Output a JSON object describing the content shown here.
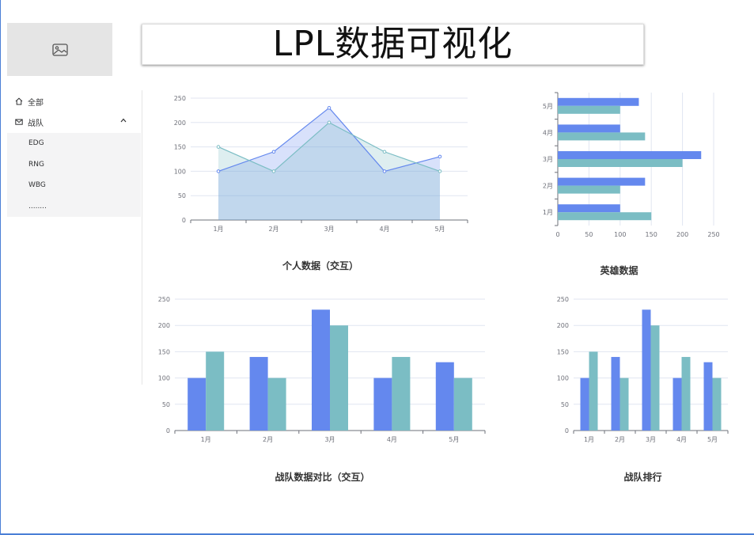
{
  "header": {
    "title": "LPL数据可视化",
    "logo_icon": "image-placeholder-icon"
  },
  "sidebar": {
    "items": [
      {
        "label": "全部",
        "icon": "home-icon"
      },
      {
        "label": "战队",
        "icon": "mail-icon",
        "expanded": true
      }
    ],
    "subitems": [
      "EDG",
      "RNG",
      "WBG",
      "........"
    ]
  },
  "colors": {
    "blue": "#6488ee",
    "teal": "#7bbdc4",
    "frame": "#4a7fd6"
  },
  "chart_data": [
    {
      "id": "personal",
      "type": "line",
      "title": "个人数据（交互）",
      "categories": [
        "1月",
        "2月",
        "3月",
        "4月",
        "5月"
      ],
      "series": [
        {
          "values": [
            100,
            140,
            230,
            100,
            130
          ]
        },
        {
          "values": [
            150,
            100,
            200,
            140,
            100
          ]
        }
      ],
      "ylim": [
        0,
        250
      ],
      "yticks": [
        0,
        50,
        100,
        150,
        200,
        250
      ],
      "grid": true,
      "area": true
    },
    {
      "id": "hero",
      "type": "bar",
      "orientation": "horizontal",
      "title": "英雄数据",
      "categories": [
        "1月",
        "2月",
        "3月",
        "4月",
        "5月"
      ],
      "series": [
        {
          "values": [
            100,
            140,
            230,
            100,
            130
          ]
        },
        {
          "values": [
            150,
            100,
            200,
            140,
            100
          ]
        }
      ],
      "xlim": [
        0,
        250
      ],
      "xticks": [
        0,
        50,
        100,
        150,
        200,
        250
      ],
      "grid": true
    },
    {
      "id": "team-compare",
      "type": "bar",
      "title": "战队数据对比（交互）",
      "categories": [
        "1月",
        "2月",
        "3月",
        "4月",
        "5月"
      ],
      "series": [
        {
          "values": [
            100,
            140,
            230,
            100,
            130
          ]
        },
        {
          "values": [
            150,
            100,
            200,
            140,
            100
          ]
        }
      ],
      "ylim": [
        0,
        250
      ],
      "yticks": [
        0,
        50,
        100,
        150,
        200,
        250
      ],
      "grid": true
    },
    {
      "id": "team-rank",
      "type": "bar",
      "title": "战队排行",
      "categories": [
        "1月",
        "2月",
        "3月",
        "4月",
        "5月"
      ],
      "series": [
        {
          "values": [
            100,
            140,
            230,
            100,
            130
          ]
        },
        {
          "values": [
            150,
            100,
            200,
            140,
            100
          ]
        }
      ],
      "ylim": [
        0,
        250
      ],
      "yticks": [
        0,
        50,
        100,
        150,
        200,
        250
      ],
      "grid": true
    }
  ]
}
